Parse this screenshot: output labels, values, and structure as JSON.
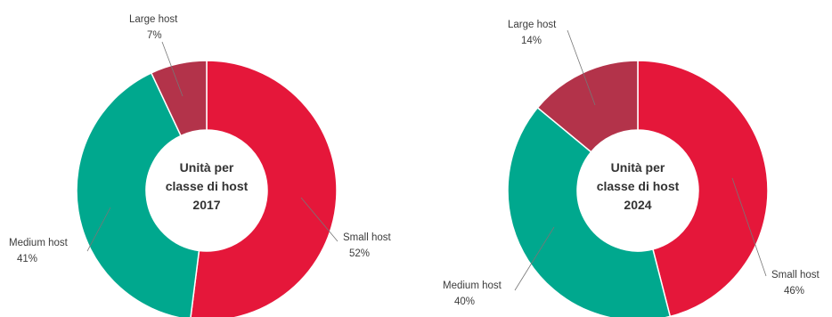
{
  "chart_data": [
    {
      "type": "pie",
      "title": "",
      "center_label": [
        "Unità per",
        "classe di host",
        "2017"
      ],
      "categories": [
        "Small host",
        "Medium host",
        "Large host"
      ],
      "values": [
        52,
        41,
        7
      ],
      "value_labels": [
        "52%",
        "41%",
        "7%"
      ],
      "colors": [
        "#e5173a",
        "#00a88e",
        "#b3334a"
      ]
    },
    {
      "type": "pie",
      "title": "",
      "center_label": [
        "Unità per",
        "classe di host",
        "2024"
      ],
      "categories": [
        "Small host",
        "Medium host",
        "Large host"
      ],
      "values": [
        46,
        40,
        14
      ],
      "value_labels": [
        "46%",
        "40%",
        "14%"
      ],
      "colors": [
        "#e5173a",
        "#00a88e",
        "#b3334a"
      ]
    }
  ]
}
